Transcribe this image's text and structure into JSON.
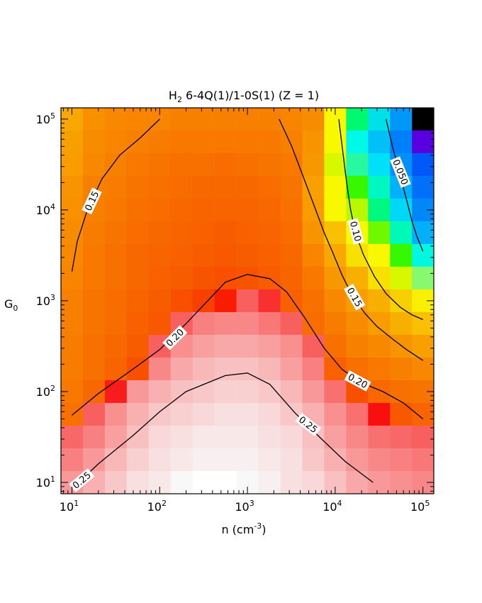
{
  "chart_data": {
    "type": "heatmap",
    "title": {
      "main": "H",
      "main_sub": "2",
      "rest": " 6-4Q(1)/1-0S(1) (Z = 1)"
    },
    "xlabel": {
      "main": "n (cm",
      "sup": "-3",
      "close": ")"
    },
    "ylabel": {
      "main": "G",
      "sub": "0"
    },
    "x_scale": "log",
    "y_scale": "log",
    "xlim": [
      7.5,
      133000
    ],
    "ylim": [
      7.5,
      133000
    ],
    "x_ticks": [
      {
        "value": 10,
        "label": "10",
        "exp": "1"
      },
      {
        "value": 100,
        "label": "10",
        "exp": "2"
      },
      {
        "value": 1000,
        "label": "10",
        "exp": "3"
      },
      {
        "value": 10000,
        "label": "10",
        "exp": "4"
      },
      {
        "value": 100000,
        "label": "10",
        "exp": "5"
      }
    ],
    "y_ticks": [
      {
        "value": 10,
        "label": "10",
        "exp": "1"
      },
      {
        "value": 100,
        "label": "10",
        "exp": "2"
      },
      {
        "value": 1000,
        "label": "10",
        "exp": "3"
      },
      {
        "value": 10000,
        "label": "10",
        "exp": "4"
      },
      {
        "value": 100000,
        "label": "10",
        "exp": "5"
      }
    ],
    "grid": false,
    "colorscale": "ratio (white ≈ 0.28 → red → orange → yellow → green → cyan → blue → black ≈ 0.0)",
    "grid_log_step": 0.25,
    "x_grid_log10": [
      1.0,
      1.25,
      1.5,
      1.75,
      2.0,
      2.25,
      2.5,
      2.75,
      3.0,
      3.25,
      3.5,
      3.75,
      4.0,
      4.25,
      4.5,
      4.75,
      5.0
    ],
    "y_grid_log10": [
      5.0,
      4.75,
      4.5,
      4.25,
      4.0,
      3.75,
      3.5,
      3.25,
      3.0,
      2.75,
      2.5,
      2.25,
      2.0,
      1.75,
      1.5,
      1.25,
      1.0
    ],
    "cell_colors": [
      [
        "#f8a800",
        "#f89000",
        "#f88800",
        "#f88400",
        "#f88400",
        "#f88000",
        "#f88000",
        "#f88000",
        "#f88000",
        "#f88000",
        "#f88400",
        "#f88c00",
        "#f8f800",
        "#00f870",
        "#00e0e8",
        "#0098f8",
        "#000000"
      ],
      [
        "#f8a000",
        "#f88c00",
        "#f88400",
        "#f88000",
        "#f87c00",
        "#f87800",
        "#f87800",
        "#f87800",
        "#f87800",
        "#f87800",
        "#f88000",
        "#f89400",
        "#f8f800",
        "#00f8e8",
        "#00c0f8",
        "#0080f8",
        "#5800e0"
      ],
      [
        "#f89c00",
        "#f88800",
        "#f88000",
        "#f87800",
        "#f87400",
        "#f87000",
        "#f87000",
        "#f86c00",
        "#f87000",
        "#f87400",
        "#f87800",
        "#f89800",
        "#d8f800",
        "#28f8a0",
        "#00e0f8",
        "#0090f8",
        "#0058f8"
      ],
      [
        "#f89400",
        "#f88000",
        "#f87c00",
        "#f87400",
        "#f87000",
        "#f86c00",
        "#f86800",
        "#f86800",
        "#f86800",
        "#f86c00",
        "#f87400",
        "#f8a000",
        "#f8f800",
        "#38f800",
        "#00f8c0",
        "#00b0f8",
        "#0070f8"
      ],
      [
        "#f89000",
        "#f88000",
        "#f87800",
        "#f87000",
        "#f86c00",
        "#f86800",
        "#f86400",
        "#f86400",
        "#f86400",
        "#f86800",
        "#f87000",
        "#f89c00",
        "#f8f800",
        "#b8f800",
        "#00f880",
        "#00d8f8",
        "#0088f8"
      ],
      [
        "#f88c00",
        "#f87c00",
        "#f87400",
        "#f86c00",
        "#f86800",
        "#f86400",
        "#f86000",
        "#f85c00",
        "#f86000",
        "#f86400",
        "#f86c00",
        "#f89400",
        "#f8c000",
        "#f8f800",
        "#70f800",
        "#00f8b8",
        "#00b0f8"
      ],
      [
        "#f88800",
        "#f87800",
        "#f87000",
        "#f86800",
        "#f86400",
        "#f86000",
        "#f85c00",
        "#f85800",
        "#f85c00",
        "#f86000",
        "#f86800",
        "#f88400",
        "#f8a800",
        "#f8e000",
        "#f8f800",
        "#38f800",
        "#00f8e0"
      ],
      [
        "#f88400",
        "#f87800",
        "#f87000",
        "#f86800",
        "#f86000",
        "#f85c00",
        "#f85400",
        "#f85000",
        "#f85400",
        "#f85c00",
        "#f86400",
        "#f87800",
        "#f89800",
        "#f8b000",
        "#f8e000",
        "#d8f800",
        "#88f870"
      ],
      [
        "#f88000",
        "#f87400",
        "#f86c00",
        "#f86400",
        "#f85c00",
        "#f85000",
        "#f84000",
        "#f81c00",
        "#f86060",
        "#f83030",
        "#f86000",
        "#f87000",
        "#f88800",
        "#f89c00",
        "#f8b000",
        "#f8d000",
        "#f8f000"
      ],
      [
        "#f88000",
        "#f87400",
        "#f86c00",
        "#f86000",
        "#f85800",
        "#f86060",
        "#f88080",
        "#f88888",
        "#f88888",
        "#f87878",
        "#f86060",
        "#f86c00",
        "#f87c00",
        "#f88c00",
        "#f89c00",
        "#f8b000",
        "#f8c000"
      ],
      [
        "#f87c00",
        "#f87000",
        "#f86800",
        "#f85c00",
        "#f86060",
        "#f89090",
        "#f8a0a0",
        "#f8a8a8",
        "#f8a8a8",
        "#f8a0a0",
        "#f89090",
        "#f86060",
        "#f87000",
        "#f88000",
        "#f88800",
        "#f89400",
        "#f8a000"
      ],
      [
        "#f87c00",
        "#f87000",
        "#f86400",
        "#f85000",
        "#f88888",
        "#f8a8a8",
        "#f8b8b8",
        "#f8c0c0",
        "#f8c0c0",
        "#f8b8b8",
        "#f8a0a0",
        "#f88080",
        "#f86000",
        "#f87000",
        "#f87800",
        "#f88000",
        "#f88800"
      ],
      [
        "#f87800",
        "#f86800",
        "#f81c1c",
        "#f89898",
        "#f8b0b0",
        "#f8c0c0",
        "#f8c8c8",
        "#f8d0d0",
        "#f8d0d0",
        "#f8c8c8",
        "#f8b8b8",
        "#f89898",
        "#f87070",
        "#f85000",
        "#f86800",
        "#f87000",
        "#f87400"
      ],
      [
        "#f87000",
        "#f86060",
        "#f89090",
        "#f8b0b0",
        "#f8c8c8",
        "#f8d0d0",
        "#f8d8d8",
        "#f8e0e0",
        "#f8e0e0",
        "#f8d8d8",
        "#f8c8c8",
        "#f8b0b0",
        "#f89090",
        "#f87070",
        "#f81010",
        "#f85800",
        "#f86400"
      ],
      [
        "#f86868",
        "#f88080",
        "#f8a0a0",
        "#f8c0c0",
        "#f8d8d8",
        "#f8e0e0",
        "#f8e8e8",
        "#f8e8e8",
        "#f8e8e8",
        "#f8e0e0",
        "#f8d8d8",
        "#f8c0c0",
        "#f8a0a0",
        "#f88888",
        "#f87070",
        "#f86868",
        "#f86060"
      ],
      [
        "#f88080",
        "#f89898",
        "#f8b8b8",
        "#f8d0d0",
        "#f8e0e0",
        "#f8e8e8",
        "#f8f0f0",
        "#f8f0f0",
        "#f8f0f0",
        "#f8e8e8",
        "#f8e0e0",
        "#f8c8c8",
        "#f8b0b0",
        "#f89898",
        "#f88888",
        "#f88080",
        "#f87878"
      ],
      [
        "#f89898",
        "#f8b0b0",
        "#f8c8c8",
        "#f8e0e0",
        "#f8e8e8",
        "#f8f8f8",
        "#ffffff",
        "#ffffff",
        "#f8f8f8",
        "#f8f0f0",
        "#f8e0e0",
        "#f8d8d8",
        "#f8c0c0",
        "#f8a8a8",
        "#f89898",
        "#f89090",
        "#f88888"
      ]
    ],
    "contours": [
      {
        "level": "0.15",
        "label": "0.15",
        "points": [
          [
            10,
            2100
          ],
          [
            11.5,
            4500
          ],
          [
            15,
            10000
          ],
          [
            22,
            22000
          ],
          [
            35,
            40000
          ],
          [
            60,
            62000
          ],
          [
            100,
            100000
          ]
        ]
      },
      {
        "level": "0.15",
        "label": "0.15",
        "points": [
          [
            2300,
            100000
          ],
          [
            3200,
            50000
          ],
          [
            4500,
            21000
          ],
          [
            6000,
            10000
          ],
          [
            7500,
            5600
          ],
          [
            9500,
            3300
          ],
          [
            12000,
            1900
          ],
          [
            16000,
            1100
          ],
          [
            22000,
            720
          ],
          [
            30000,
            520
          ],
          [
            45000,
            380
          ],
          [
            65000,
            290
          ],
          [
            100000,
            220
          ]
        ]
      },
      {
        "level": "0.10",
        "label": "0.10",
        "points": [
          [
            11000,
            100000
          ],
          [
            12000,
            50000
          ],
          [
            13500,
            20000
          ],
          [
            15000,
            10000
          ],
          [
            17000,
            5600
          ],
          [
            21000,
            3200
          ],
          [
            28000,
            1850
          ],
          [
            38000,
            1200
          ],
          [
            55000,
            850
          ],
          [
            75000,
            700
          ],
          [
            100000,
            620
          ]
        ]
      },
      {
        "level": "0.050",
        "label": "0.050",
        "points": [
          [
            38000,
            100000
          ],
          [
            45000,
            50000
          ],
          [
            55000,
            24000
          ],
          [
            65000,
            13000
          ],
          [
            75000,
            7500
          ],
          [
            86000,
            5000
          ],
          [
            100000,
            3500
          ]
        ]
      },
      {
        "level": "0.20",
        "label": "0.20",
        "points": [
          [
            10,
            55
          ],
          [
            20,
            95
          ],
          [
            45,
            165
          ],
          [
            100,
            290
          ],
          [
            200,
            560
          ],
          [
            560,
            1600
          ],
          [
            1000,
            1950
          ],
          [
            1800,
            1750
          ],
          [
            2800,
            1250
          ],
          [
            4500,
            650
          ],
          [
            7500,
            300
          ],
          [
            12000,
            175
          ],
          [
            20000,
            125
          ],
          [
            35000,
            100
          ],
          [
            60000,
            75
          ],
          [
            100000,
            50
          ]
        ]
      },
      {
        "level": "0.25",
        "label": "0.25",
        "points": [
          [
            10,
            8.5
          ],
          [
            20,
            16
          ],
          [
            50,
            33
          ],
          [
            100,
            60
          ],
          [
            200,
            100
          ],
          [
            560,
            150
          ],
          [
            1000,
            160
          ],
          [
            1800,
            120
          ],
          [
            3500,
            58
          ],
          [
            7000,
            30
          ],
          [
            13000,
            17
          ],
          [
            27000,
            10
          ]
        ]
      }
    ],
    "contour_labels": [
      {
        "text": "0.15",
        "x": 17,
        "y": 12500,
        "angle": -65
      },
      {
        "text": "0.15",
        "x": 16500,
        "y": 1090,
        "angle": 60
      },
      {
        "text": "0.10",
        "x": 17000,
        "y": 5800,
        "angle": 75
      },
      {
        "text": "0.050",
        "x": 55000,
        "y": 26000,
        "angle": 68
      },
      {
        "text": "0.20",
        "x": 150,
        "y": 390,
        "angle": -45
      },
      {
        "text": "0.20",
        "x": 18000,
        "y": 130,
        "angle": 28
      },
      {
        "text": "0.25",
        "x": 4900,
        "y": 43,
        "angle": 38
      },
      {
        "text": "0.25",
        "x": 13,
        "y": 10.5,
        "angle": -40
      }
    ]
  }
}
